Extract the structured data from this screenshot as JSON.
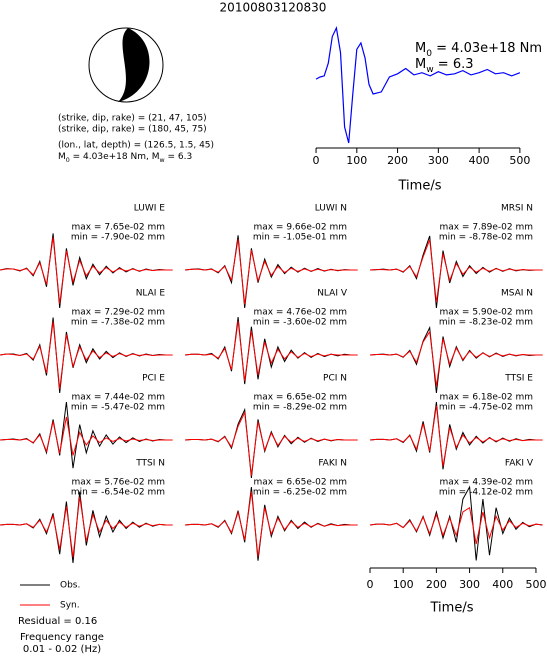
{
  "title": "20100803120830",
  "mechanism": {
    "lines": [
      "(strike, dip, rake) = (21, 47, 105)",
      "(strike, dip, rake) = (180, 45, 75)",
      "(lon., lat, depth) = (126.5, 1.5, 45)"
    ],
    "moment": [
      "M",
      "0",
      " = 4.03e+18 Nm, M",
      "w",
      " = 6.3"
    ]
  },
  "chart_data": [
    {
      "type": "line",
      "annotations": [
        [
          "M",
          "0",
          " = 4.03e+18 Nm"
        ],
        [
          "M",
          "w",
          " = 6.3"
        ]
      ],
      "x": [
        0,
        10,
        20,
        30,
        40,
        50,
        60,
        70,
        80,
        90,
        100,
        110,
        120,
        130,
        140,
        160,
        180,
        200,
        220,
        240,
        260,
        280,
        300,
        320,
        340,
        360,
        380,
        400,
        420,
        440,
        460,
        480,
        500
      ],
      "values": [
        0,
        0.2,
        0.3,
        1.5,
        4.0,
        4.8,
        2.5,
        -4.5,
        -6.0,
        -1.5,
        2.8,
        3.4,
        2.0,
        -0.5,
        -1.4,
        -1.2,
        0.2,
        0.5,
        1.0,
        0.4,
        0.6,
        0.3,
        0.7,
        0.4,
        0.5,
        0.8,
        0.4,
        0.6,
        0.9,
        0.5,
        0.6,
        0.3,
        0.6
      ],
      "color": "#0000ff",
      "xlim": [
        -5,
        515
      ],
      "xticks": [
        0,
        100,
        200,
        300,
        400,
        500
      ],
      "xlabel": "Time/s"
    },
    {
      "type": "waveform",
      "title": "LUWI E",
      "max_label": "max = 7.65e-02 mm",
      "min_label": "min = -7.90e-02 mm",
      "series": [
        {
          "name": "Obs.",
          "color": "#000000",
          "values": [
            0,
            0.3,
            0.2,
            -0.2,
            0.4,
            -1.2,
            1.8,
            -3.5,
            7.6,
            -7.9,
            4.5,
            -3.2,
            2.6,
            -1.8,
            1.2,
            -1.0,
            0.8,
            -0.6,
            0.5,
            -0.4,
            0.3,
            -0.3,
            0.2,
            -0.1,
            0.1,
            0,
            0
          ]
        },
        {
          "name": "Syn.",
          "color": "#ff0000",
          "values": [
            0,
            0.2,
            0.2,
            -0.1,
            0.3,
            -1.0,
            1.5,
            -3.0,
            6.8,
            -7.0,
            4.0,
            -2.5,
            2.0,
            -1.2,
            0.8,
            -0.6,
            0.5,
            -0.4,
            0.3,
            -0.2,
            0.2,
            -0.2,
            0.1,
            -0.1,
            0,
            0,
            0
          ]
        }
      ]
    },
    {
      "type": "waveform",
      "title": "LUWI N",
      "max_label": "max = 9.66e-02 mm",
      "min_label": "min = -1.05e-01 mm",
      "series": [
        {
          "name": "Obs.",
          "color": "#000000",
          "values": [
            0,
            0.2,
            0.3,
            0,
            0.3,
            -0.8,
            1.2,
            -3.5,
            9.6,
            -10.5,
            6.0,
            -3.5,
            3.0,
            -2.0,
            1.5,
            -1.0,
            0.8,
            -0.6,
            0.5,
            -0.4,
            0.4,
            -0.3,
            0.2,
            -0.2,
            0.1,
            0,
            0
          ]
        },
        {
          "name": "Syn.",
          "color": "#ff0000",
          "values": [
            0,
            0.2,
            0.2,
            0,
            0.2,
            -0.6,
            1.0,
            -2.8,
            8.5,
            -9.5,
            5.5,
            -3.0,
            2.4,
            -1.5,
            1.0,
            -0.7,
            0.5,
            -0.4,
            0.3,
            -0.3,
            0.2,
            -0.2,
            0.1,
            -0.1,
            0,
            0,
            0
          ]
        }
      ]
    },
    {
      "type": "waveform",
      "title": "MRSI N",
      "max_label": "max = 7.89e-02 mm",
      "min_label": "min = -8.78e-02 mm",
      "series": [
        {
          "name": "Obs.",
          "color": "#000000",
          "values": [
            0,
            0.1,
            0.2,
            0,
            0.2,
            -0.5,
            1.0,
            -2.0,
            3.5,
            7.9,
            -8.8,
            4.5,
            -3.0,
            2.0,
            -1.5,
            1.0,
            -0.8,
            0.6,
            -0.5,
            0.4,
            -0.3,
            0.3,
            -0.2,
            0.1,
            -0.1,
            0,
            0
          ]
        },
        {
          "name": "Syn.",
          "color": "#ff0000",
          "values": [
            0,
            0.1,
            0.1,
            0,
            0.2,
            -0.4,
            0.8,
            -1.6,
            3.0,
            7.0,
            -7.5,
            3.8,
            -2.4,
            1.5,
            -1.0,
            0.7,
            -0.5,
            0.4,
            -0.3,
            0.3,
            -0.2,
            0.2,
            -0.1,
            0.1,
            0,
            0,
            0
          ]
        }
      ]
    },
    {
      "type": "waveform",
      "title": "NLAI E",
      "max_label": "max = 7.29e-02 mm",
      "min_label": "min = -7.38e-02 mm",
      "series": [
        {
          "name": "Obs.",
          "color": "#000000",
          "values": [
            0,
            0.2,
            0.2,
            -0.1,
            0.3,
            -1.0,
            2.0,
            -4.0,
            7.3,
            -7.4,
            4.5,
            -2.5,
            2.0,
            -1.5,
            1.2,
            -0.8,
            0.7,
            -0.5,
            0.4,
            -0.3,
            0.3,
            -0.2,
            0.2,
            -0.1,
            0.1,
            0,
            0
          ]
        },
        {
          "name": "Syn.",
          "color": "#ff0000",
          "values": [
            0,
            0.2,
            0.1,
            -0.1,
            0.2,
            -0.8,
            1.7,
            -3.5,
            6.5,
            -6.6,
            4.0,
            -2.2,
            1.6,
            -1.0,
            0.8,
            -0.5,
            0.4,
            -0.3,
            0.3,
            -0.2,
            0.2,
            -0.1,
            0.1,
            -0.1,
            0,
            0,
            0
          ]
        }
      ]
    },
    {
      "type": "waveform",
      "title": "NLAI V",
      "max_label": "max = 4.76e-02 mm",
      "min_label": "min = -3.60e-02 mm",
      "series": [
        {
          "name": "Obs.",
          "color": "#000000",
          "values": [
            0,
            0.1,
            0.1,
            0,
            0.2,
            -0.5,
            1.0,
            -2.0,
            4.7,
            -3.6,
            3.5,
            -3.0,
            2.0,
            -1.5,
            1.0,
            -0.8,
            0.6,
            -0.4,
            0.3,
            -0.3,
            0.2,
            -0.2,
            0.1,
            -0.1,
            0.1,
            0,
            0
          ]
        },
        {
          "name": "Syn.",
          "color": "#ff0000",
          "values": [
            0,
            0.1,
            0.1,
            0,
            0.1,
            -0.4,
            0.8,
            -1.8,
            4.2,
            -3.2,
            3.0,
            -2.5,
            1.6,
            -1.0,
            0.7,
            -0.5,
            0.4,
            -0.3,
            0.2,
            -0.2,
            0.1,
            -0.1,
            0.1,
            0,
            0,
            0,
            0
          ]
        }
      ]
    },
    {
      "type": "waveform",
      "title": "MSAI N",
      "max_label": "max = 5.90e-02 mm",
      "min_label": "min = -8.23e-02 mm",
      "series": [
        {
          "name": "Obs.",
          "color": "#000000",
          "values": [
            0,
            0.1,
            0.2,
            0,
            0.2,
            -0.5,
            1.0,
            -2.0,
            3.0,
            5.9,
            -8.2,
            4.0,
            -2.5,
            1.8,
            -1.2,
            1.0,
            -0.7,
            0.5,
            -0.4,
            0.4,
            -0.3,
            0.2,
            -0.2,
            0.1,
            -0.1,
            0,
            0
          ]
        },
        {
          "name": "Syn.",
          "color": "#ff0000",
          "values": [
            0,
            0.1,
            0.1,
            0,
            0.2,
            -0.4,
            0.8,
            -1.6,
            2.8,
            5.0,
            -6.8,
            3.5,
            -2.0,
            1.5,
            -1.0,
            0.8,
            -0.5,
            0.4,
            -0.3,
            0.3,
            -0.2,
            0.2,
            -0.1,
            0.1,
            0,
            0,
            0
          ]
        }
      ]
    },
    {
      "type": "waveform",
      "title": "PCI E",
      "max_label": "max = 7.44e-02 mm",
      "min_label": "min = -5.47e-02 mm",
      "series": [
        {
          "name": "Obs.",
          "color": "#000000",
          "values": [
            0,
            0.1,
            0.2,
            0,
            0.3,
            -0.6,
            1.2,
            -2.5,
            4.0,
            -3.0,
            7.4,
            -5.5,
            3.0,
            -2.5,
            1.8,
            -1.2,
            1.0,
            -0.8,
            0.6,
            -0.5,
            0.4,
            -0.3,
            0.2,
            -0.2,
            0.1,
            0,
            0
          ]
        },
        {
          "name": "Syn.",
          "color": "#ff0000",
          "values": [
            0,
            0.1,
            0.1,
            0,
            0.2,
            -0.5,
            1.0,
            -2.2,
            3.6,
            -2.6,
            4.5,
            -3.0,
            1.5,
            -1.0,
            0.8,
            -0.5,
            0.4,
            -0.3,
            0.3,
            -0.2,
            0.2,
            -0.1,
            0.1,
            -0.1,
            0,
            0,
            0
          ]
        }
      ]
    },
    {
      "type": "waveform",
      "title": "PCI N",
      "max_label": "max = 6.65e-02 mm",
      "min_label": "min = -8.29e-02 mm",
      "series": [
        {
          "name": "Obs.",
          "color": "#000000",
          "values": [
            0,
            0.1,
            0.1,
            0,
            0.2,
            -0.4,
            0.8,
            -1.8,
            3.5,
            6.6,
            -8.3,
            4.5,
            -2.5,
            1.8,
            -1.5,
            1.0,
            -0.8,
            0.6,
            -0.5,
            0.4,
            -0.3,
            0.2,
            -0.2,
            0.1,
            0,
            0,
            0
          ]
        },
        {
          "name": "Syn.",
          "color": "#ff0000",
          "values": [
            0,
            0.1,
            0.1,
            0,
            0.2,
            -0.3,
            0.7,
            -1.5,
            3.0,
            6.0,
            -7.8,
            4.0,
            -2.2,
            1.5,
            -1.2,
            0.8,
            -0.5,
            0.4,
            -0.3,
            0.3,
            -0.2,
            0.2,
            -0.1,
            0.1,
            0,
            0,
            0
          ]
        }
      ]
    },
    {
      "type": "waveform",
      "title": "TTSI E",
      "max_label": "max = 6.18e-02 mm",
      "min_label": "min = -4.75e-02 mm",
      "series": [
        {
          "name": "Obs.",
          "color": "#000000",
          "values": [
            0,
            0.1,
            0.1,
            0,
            0.2,
            -0.4,
            0.8,
            -1.8,
            3.0,
            -2.0,
            6.1,
            -4.7,
            2.5,
            -1.5,
            1.2,
            -0.8,
            0.6,
            -0.5,
            0.4,
            -0.3,
            0.3,
            -0.2,
            0.2,
            -0.1,
            0.1,
            0,
            0
          ]
        },
        {
          "name": "Syn.",
          "color": "#ff0000",
          "values": [
            0,
            0.1,
            0.1,
            0,
            0.2,
            -0.3,
            0.7,
            -1.5,
            2.6,
            -1.8,
            5.5,
            -4.2,
            2.0,
            -1.2,
            0.8,
            -0.5,
            0.4,
            -0.3,
            0.3,
            -0.2,
            0.2,
            -0.1,
            0.1,
            -0.1,
            0,
            0,
            0
          ]
        }
      ]
    },
    {
      "type": "waveform",
      "title": "TTSI N",
      "max_label": "max = 5.76e-02 mm",
      "min_label": "min = -6.54e-02 mm",
      "series": [
        {
          "name": "Obs.",
          "color": "#000000",
          "values": [
            0,
            0.1,
            0.1,
            0,
            0.2,
            -0.5,
            1.0,
            -1.5,
            2.0,
            -5.0,
            4.0,
            -6.5,
            5.7,
            -3.5,
            2.5,
            -2.0,
            1.5,
            -1.2,
            0.8,
            -0.6,
            0.5,
            -0.4,
            0.3,
            -0.2,
            0.1,
            0,
            0
          ]
        },
        {
          "name": "Syn.",
          "color": "#ff0000",
          "values": [
            0,
            0.1,
            0.1,
            0,
            0.2,
            -0.4,
            0.8,
            -1.2,
            1.6,
            -4.2,
            3.2,
            -5.5,
            4.8,
            -2.8,
            1.8,
            -1.2,
            0.8,
            -0.6,
            0.5,
            -0.4,
            0.3,
            -0.2,
            0.2,
            -0.1,
            0.1,
            0,
            0
          ]
        }
      ]
    },
    {
      "type": "waveform",
      "title": "FAKI N",
      "max_label": "max = 6.65e-02 mm",
      "min_label": "min = -6.25e-02 mm",
      "series": [
        {
          "name": "Obs.",
          "color": "#000000",
          "values": [
            0,
            0.1,
            0.1,
            0,
            0.2,
            -0.4,
            0.8,
            -1.5,
            2.5,
            -3.0,
            6.6,
            -6.2,
            3.5,
            -2.0,
            1.5,
            -1.0,
            0.8,
            -0.6,
            0.5,
            -0.4,
            0.3,
            -0.2,
            0.2,
            -0.1,
            0.1,
            0,
            0
          ]
        },
        {
          "name": "Syn.",
          "color": "#ff0000",
          "values": [
            0,
            0.1,
            0.1,
            0,
            0.2,
            -0.3,
            0.7,
            -1.3,
            2.2,
            -2.6,
            5.8,
            -5.5,
            3.0,
            -1.6,
            1.2,
            -0.8,
            0.6,
            -0.4,
            0.3,
            -0.3,
            0.2,
            -0.2,
            0.1,
            -0.1,
            0,
            0,
            0
          ]
        }
      ]
    },
    {
      "type": "waveform",
      "title": "FAKI V",
      "max_label": "max = 4.39e-02 mm",
      "min_label": "min = -4.12e-02 mm",
      "series": [
        {
          "name": "Obs.",
          "color": "#000000",
          "values": [
            0,
            0.1,
            0.1,
            0,
            0.2,
            -0.3,
            0.6,
            -0.8,
            1.0,
            -1.2,
            1.5,
            -1.5,
            1.0,
            -2.0,
            3.0,
            4.4,
            -4.1,
            3.0,
            -3.5,
            2.0,
            -1.0,
            0.8,
            -0.5,
            0.3,
            -0.2,
            0.1,
            0
          ]
        },
        {
          "name": "Syn.",
          "color": "#ff0000",
          "values": [
            0,
            0.1,
            0.1,
            0,
            0.2,
            -0.3,
            0.5,
            -0.7,
            0.9,
            -1.0,
            1.2,
            -1.2,
            0.8,
            -1.2,
            1.5,
            2.0,
            -2.2,
            1.5,
            -1.5,
            1.0,
            -0.6,
            0.5,
            -0.3,
            0.2,
            -0.1,
            0.1,
            0
          ]
        }
      ]
    }
  ],
  "waveform_x": [
    0,
    20,
    40,
    60,
    80,
    100,
    120,
    140,
    160,
    180,
    200,
    220,
    240,
    260,
    280,
    300,
    320,
    340,
    360,
    380,
    400,
    420,
    440,
    460,
    480,
    500,
    520
  ],
  "waveform_axis": {
    "xlim": [
      0,
      520
    ],
    "xticks": [
      0,
      100,
      200,
      300,
      400,
      500
    ],
    "xlabel": "Time/s"
  },
  "footer": {
    "residual": "Residual = 0.16",
    "freq_title": "Frequency range",
    "freq_range": "0.01 - 0.02 (Hz)"
  }
}
